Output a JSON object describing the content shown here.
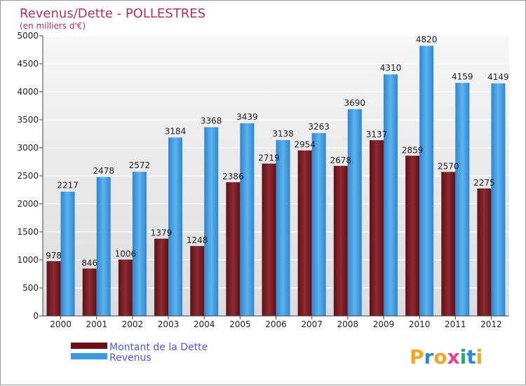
{
  "chart_data": {
    "type": "bar",
    "title": "Revenus/Dette - POLLESTRES",
    "subtitle": "(en milliers d'€)",
    "categories": [
      "2000",
      "2001",
      "2002",
      "2003",
      "2004",
      "2005",
      "2006",
      "2007",
      "2008",
      "2009",
      "2010",
      "2011",
      "2012"
    ],
    "series": [
      {
        "name": "Montant de la Dette",
        "color": "#7a1f24",
        "values": [
          978,
          846,
          1006,
          1379,
          1248,
          2386,
          2719,
          2954,
          2678,
          3137,
          2859,
          2570,
          2275
        ],
        "labels": [
          "978",
          "846",
          "1006",
          "1379",
          "1248",
          "2386",
          "2719",
          "2954",
          "2678",
          "3137",
          "2859",
          "2570",
          "2275"
        ]
      },
      {
        "name": "Revenus",
        "color": "#3d9ae0",
        "values": [
          2217,
          2478,
          2572,
          3184,
          3368,
          3439,
          3138,
          3263,
          3690,
          4310,
          4820,
          4159,
          4149
        ],
        "labels": [
          "2217",
          "2478",
          "2572",
          "3184",
          "3368",
          "3439",
          "3138",
          "3263",
          "3690",
          "4310",
          "4820",
          "4159",
          "4149"
        ]
      }
    ],
    "ylim": [
      0,
      5000
    ],
    "yticks": [
      "0",
      "500",
      "1000",
      "1500",
      "2000",
      "2500",
      "3000",
      "3500",
      "4000",
      "4500",
      "5000"
    ],
    "grid": true,
    "legend": "bottom-left"
  },
  "logo": {
    "letters": [
      "P",
      "r",
      "o",
      "x",
      "i",
      "t",
      "i"
    ],
    "colors": [
      "#f5a623",
      "#2e86de",
      "#f5a623",
      "#e84393",
      "#27ae60",
      "#2e86de",
      "#f5a623"
    ]
  }
}
